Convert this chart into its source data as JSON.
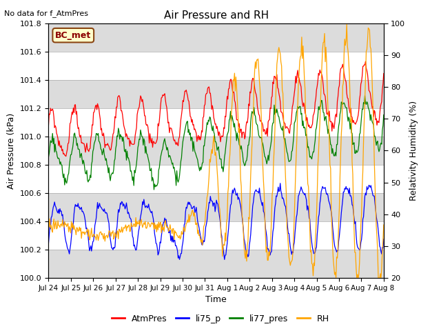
{
  "title": "Air Pressure and RH",
  "top_left_text": "No data for f_AtmPres",
  "box_label": "BC_met",
  "xlabel": "Time",
  "ylabel_left": "Air Pressure (kPa)",
  "ylabel_right": "Relativity Humidity (%)",
  "ylim_left": [
    100.0,
    101.8
  ],
  "ylim_right": [
    20,
    100
  ],
  "yticks_left": [
    100.0,
    100.2,
    100.4,
    100.6,
    100.8,
    101.0,
    101.2,
    101.4,
    101.6,
    101.8
  ],
  "yticks_right": [
    20,
    30,
    40,
    50,
    60,
    70,
    80,
    90,
    100
  ],
  "xtick_labels": [
    "Jul 24",
    "Jul 25",
    "Jul 26",
    "Jul 27",
    "Jul 28",
    "Jul 29",
    "Jul 30",
    "Jul 31",
    "Aug 1",
    "Aug 2",
    "Aug 3",
    "Aug 4",
    "Aug 5",
    "Aug 6",
    "Aug 7",
    "Aug 8"
  ],
  "legend_entries": [
    "AtmPres",
    "li75_p",
    "li77_pres",
    "RH"
  ],
  "color_AtmPres": "red",
  "color_li75_p": "blue",
  "color_li77_pres": "green",
  "color_RH": "orange",
  "bg_band_color": "#dcdcdc",
  "n_points": 500
}
